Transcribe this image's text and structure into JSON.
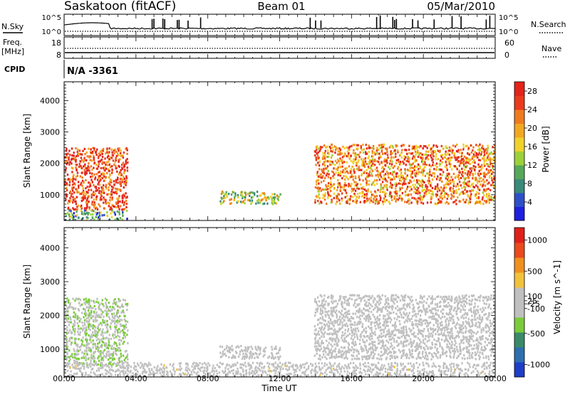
{
  "header": {
    "title": "Saskatoon (fitACF)",
    "beam": "Beam 01",
    "date": "05/Mar/2010"
  },
  "summary": {
    "nsky_label": "N.Sky",
    "nsearch_label": "N.Search",
    "nsky_ticks": [
      "10^5",
      "10^0"
    ],
    "freq_label_1": "Freq.",
    "freq_label_2": "[MHz]",
    "freq_ticks": [
      "18",
      "8"
    ],
    "nave_label": "Nave",
    "nave_ticks": [
      "60",
      "0"
    ],
    "cpid_label": "CPID",
    "cpid_value": "N/A -3361"
  },
  "x_axis": {
    "label": "Time UT",
    "ticks": [
      "00:00",
      "04:00",
      "08:00",
      "12:00",
      "16:00",
      "20:00",
      "00:00"
    ]
  },
  "chart_data": [
    {
      "type": "heatmap",
      "title": "",
      "xlabel": "Time UT",
      "ylabel": "Slant Range [km]",
      "x_ticks": [
        "00:00",
        "04:00",
        "08:00",
        "12:00",
        "16:00",
        "20:00",
        "00:00"
      ],
      "xlim_hours": [
        0,
        24
      ],
      "ylim": [
        180,
        4600
      ],
      "y_ticks": [
        1000,
        2000,
        3000,
        4000
      ],
      "colorbar": {
        "label": "Power [dB]",
        "ticks": [
          4,
          8,
          12,
          16,
          20,
          24,
          28
        ],
        "range": [
          0,
          30
        ],
        "colors": [
          "#1f1fe0",
          "#2d50c8",
          "#3a8a7a",
          "#57a85a",
          "#9cd13a",
          "#f0d22a",
          "#f2a820",
          "#f07a1e",
          "#ea3a1c",
          "#e3231a"
        ]
      },
      "echo_regions": [
        {
          "t": [
            0.0,
            3.5
          ],
          "r": [
            500,
            2500
          ],
          "value": 26
        },
        {
          "t": [
            0.0,
            3.5
          ],
          "r": [
            180,
            500
          ],
          "value": 10
        },
        {
          "t": [
            8.6,
            12.0
          ],
          "r": [
            700,
            1100
          ],
          "value": 14
        },
        {
          "t": [
            13.9,
            24.0
          ],
          "r": [
            700,
            2600
          ],
          "value": 22
        }
      ]
    },
    {
      "type": "heatmap",
      "title": "",
      "xlabel": "Time UT",
      "ylabel": "Slant Range [km]",
      "x_ticks": [
        "00:00",
        "04:00",
        "08:00",
        "12:00",
        "16:00",
        "20:00",
        "00:00"
      ],
      "xlim_hours": [
        0,
        24
      ],
      "ylim": [
        180,
        4600
      ],
      "y_ticks": [
        1000,
        2000,
        3000,
        4000
      ],
      "colorbar": {
        "label": "Velocity [m s^-1]",
        "ticks": [
          1000,
          500,
          100,
          25,
          -25,
          -100,
          -500,
          -1000
        ],
        "range": [
          -1200,
          1200
        ],
        "colors": [
          "#1f3ec8",
          "#2e6fb0",
          "#3a8a6a",
          "#7acc3a",
          "#c0c0c0",
          "#c0c0c0",
          "#f2c23a",
          "#f0901e",
          "#ea4a1c",
          "#e0201a"
        ]
      },
      "echo_regions": [
        {
          "t": [
            0.0,
            3.5
          ],
          "r": [
            500,
            2500
          ],
          "value": -200
        },
        {
          "t": [
            0.0,
            24.0
          ],
          "r": [
            180,
            600
          ],
          "value": 50
        },
        {
          "t": [
            8.6,
            12.0
          ],
          "r": [
            700,
            1100
          ],
          "value": 10
        },
        {
          "t": [
            13.9,
            24.0
          ],
          "r": [
            700,
            2600
          ],
          "value": -20
        }
      ]
    }
  ]
}
